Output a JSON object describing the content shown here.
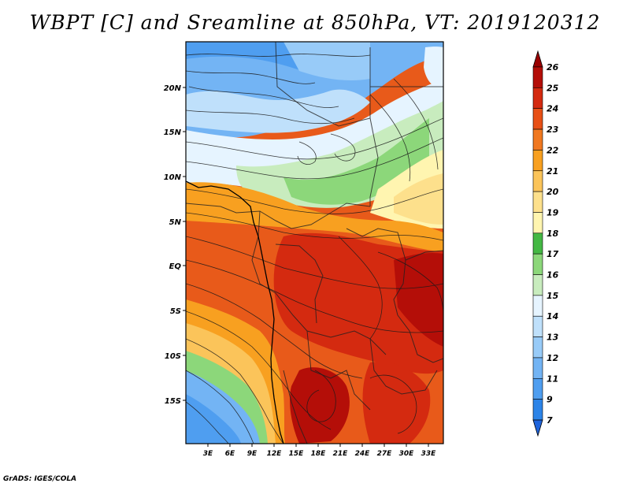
{
  "title": "WBPT [C] and Sreamline at 850hPa, VT: 2019120312",
  "footer": "GrADS: IGES/COLA",
  "map": {
    "lat_ticks": [
      "20N",
      "15N",
      "10N",
      "5N",
      "EQ",
      "5S",
      "10S",
      "15S"
    ],
    "lon_ticks": [
      "3E",
      "6E",
      "9E",
      "12E",
      "15E",
      "18E",
      "21E",
      "24E",
      "27E",
      "30E",
      "33E"
    ]
  },
  "colorbar": {
    "levels": [
      "7",
      "9",
      "11",
      "12",
      "13",
      "14",
      "15",
      "16",
      "17",
      "18",
      "19",
      "20",
      "21",
      "22",
      "23",
      "24",
      "25",
      "26"
    ],
    "colors": [
      "#1e64dc",
      "#2c84e8",
      "#4f9ef0",
      "#73b4f4",
      "#98cbf8",
      "#bfe0fb",
      "#e6f4ff",
      "#c8ecbe",
      "#8cd77a",
      "#44b844",
      "#fff5b0",
      "#fde08c",
      "#fbc45a",
      "#f8a020",
      "#f07820",
      "#e85016",
      "#d42a10",
      "#b40e08",
      "#9a0000"
    ]
  }
}
